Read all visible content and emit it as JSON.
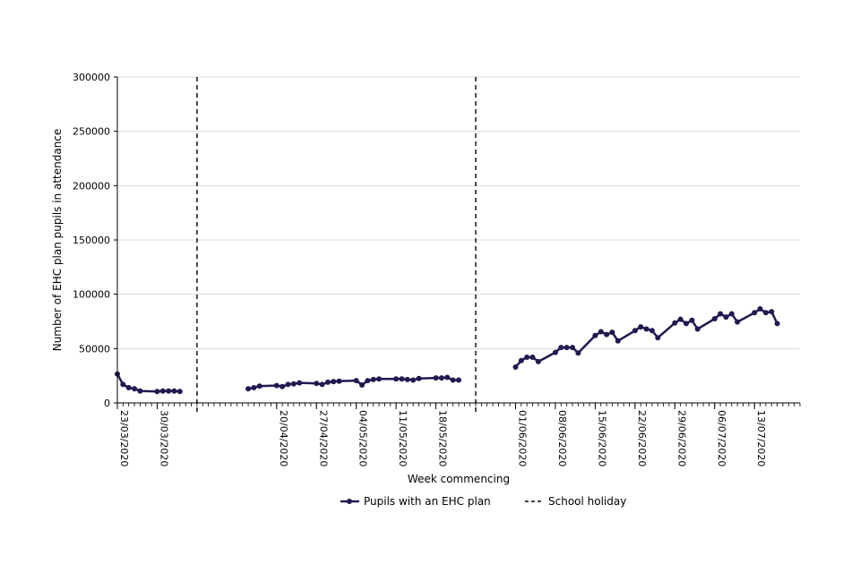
{
  "chart_data": {
    "type": "line",
    "title": "",
    "xlabel": "Week commencing",
    "ylabel": "Number of EHC plan pupils in attendance",
    "ylim": [
      0,
      300000
    ],
    "yticks": [
      "0",
      "50000",
      "100000",
      "150000",
      "200000",
      "250000",
      "300000"
    ],
    "xlim": [
      "2020-03-23",
      "2020-07-21"
    ],
    "xticks": [
      "23/03/2020",
      "30/03/2020",
      "20/04/2020",
      "27/04/2020",
      "04/05/2020",
      "11/05/2020",
      "18/05/2020",
      "01/06/2020",
      "08/06/2020",
      "15/06/2020",
      "22/06/2020",
      "29/06/2020",
      "06/07/2020",
      "13/07/2020"
    ],
    "grid": "horizontal",
    "legend_position": "bottom",
    "series": [
      {
        "name": "Pupils with an EHC plan",
        "color": "#1f1a4f",
        "marker": "circle",
        "segments": [
          {
            "x": [
              "2020-03-23",
              "2020-03-24",
              "2020-03-25",
              "2020-03-26",
              "2020-03-27",
              "2020-03-30",
              "2020-03-31",
              "2020-04-01",
              "2020-04-02",
              "2020-04-03"
            ],
            "y": [
              26500,
              17000,
              14000,
              13000,
              11000,
              10500,
              11000,
              11000,
              11000,
              10500
            ]
          },
          {
            "x": [
              "2020-04-15",
              "2020-04-16",
              "2020-04-17",
              "2020-04-20",
              "2020-04-21",
              "2020-04-22",
              "2020-04-23",
              "2020-04-24",
              "2020-04-27",
              "2020-04-28",
              "2020-04-29",
              "2020-04-30",
              "2020-05-01",
              "2020-05-04",
              "2020-05-05",
              "2020-05-06",
              "2020-05-07",
              "2020-05-08",
              "2020-05-11",
              "2020-05-12",
              "2020-05-13",
              "2020-05-14",
              "2020-05-15",
              "2020-05-18",
              "2020-05-19",
              "2020-05-20",
              "2020-05-21",
              "2020-05-22"
            ],
            "y": [
              13000,
              14000,
              15500,
              16000,
              15000,
              17000,
              17500,
              18500,
              18000,
              17000,
              19000,
              19500,
              20000,
              20500,
              16500,
              20500,
              21500,
              22000,
              22000,
              22000,
              21500,
              21000,
              22500,
              23000,
              23000,
              23500,
              21000,
              21000
            ]
          },
          {
            "x": [
              "2020-06-01",
              "2020-06-02",
              "2020-06-03",
              "2020-06-04",
              "2020-06-05",
              "2020-06-08",
              "2020-06-09",
              "2020-06-10",
              "2020-06-11",
              "2020-06-12",
              "2020-06-15",
              "2020-06-16",
              "2020-06-17",
              "2020-06-18",
              "2020-06-19",
              "2020-06-22",
              "2020-06-23",
              "2020-06-24",
              "2020-06-25",
              "2020-06-26",
              "2020-06-29",
              "2020-06-30",
              "2020-07-01",
              "2020-07-02",
              "2020-07-03",
              "2020-07-06",
              "2020-07-07",
              "2020-07-08",
              "2020-07-09",
              "2020-07-10",
              "2020-07-13",
              "2020-07-14",
              "2020-07-15",
              "2020-07-16",
              "2020-07-17"
            ],
            "y": [
              33000,
              39000,
              42000,
              42000,
              38000,
              46500,
              51000,
              51000,
              51000,
              46000,
              62000,
              65500,
              63000,
              65000,
              57000,
              66500,
              70000,
              68000,
              66500,
              60000,
              73500,
              77000,
              73000,
              76000,
              68000,
              77500,
              82000,
              79000,
              82000,
              74500,
              83000,
              86500,
              83000,
              84000,
              73000
            ]
          }
        ]
      },
      {
        "name": "School holiday",
        "color": "#000000",
        "style": "dashed",
        "x": [
          "2020-04-06",
          "2020-05-25"
        ]
      }
    ]
  }
}
